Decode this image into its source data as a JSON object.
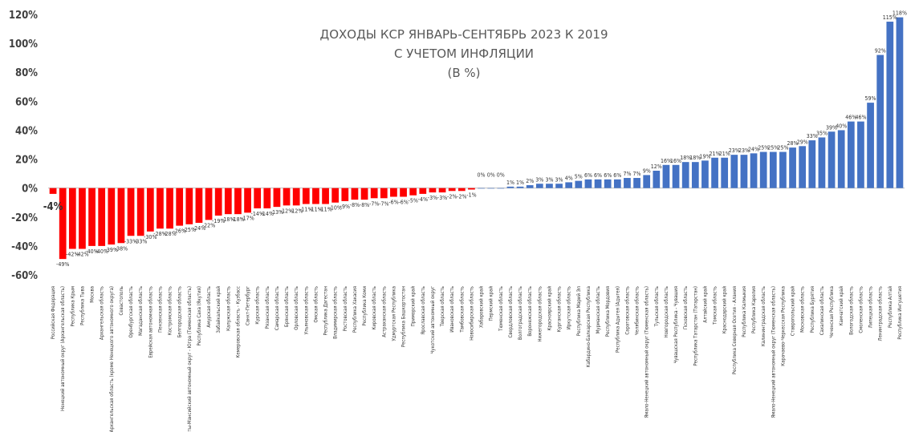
{
  "chart_data": {
    "type": "bar",
    "title": [
      "ДОХОДЫ КСР ЯНВАРЬ-СЕНТЯБРЬ 2023 К 2019",
      "С УЧЕТОМ ИНФЛЯЦИИ",
      "(В %)"
    ],
    "y_ticks": [
      "120%",
      "100%",
      "80%",
      "60%",
      "40%",
      "20%",
      "0%",
      "-20%",
      "-40%",
      "-60%"
    ],
    "ylim": [
      -60,
      120
    ],
    "grid": false,
    "negative_color": "#ff0000",
    "positive_color": "#4472c4",
    "categories": [
      "Российская Федерация",
      "Ненецкий автономный округ (Архангельская область)",
      "Республика Крым",
      "Республика Тыва",
      "Москва",
      "Архангельская область",
      "Архангельская область (кроме Ненецкого автономного округа)",
      "Севастополь",
      "Оренбургская область",
      "Магаданская область",
      "Еврейская автономная область",
      "Пензенская область",
      "Костромская область",
      "Белгородская область",
      "Ханты-Мансийский автономный округ - Югра (Тюменская область)",
      "Республика Саха (Якутия)",
      "Амурская область",
      "Забайкальский край",
      "Калужская область",
      "Кемеровская область - Кузбасс",
      "Санкт-Петербург",
      "Курская область",
      "Рязанская область",
      "Самарская область",
      "Брянская область",
      "Орловская область",
      "Ульяновская область",
      "Омская область",
      "Республика Дагестан",
      "Владимирская область",
      "Ростовская область",
      "Республика Хакасия",
      "Республика Коми",
      "Кировская область",
      "Астраханская область",
      "Удмуртская Республика",
      "Республика Башкортостан",
      "Приморский край",
      "Ярославская область",
      "Чукотский автономный округ",
      "Тверская область",
      "Ивановская область",
      "Тамбовская область",
      "Новосибирская область",
      "Хабаровский край",
      "Пермский край",
      "Тюменская область",
      "Свердловская область",
      "Волгоградская область",
      "Воронежская область",
      "Нижегородская область",
      "Красноярский край",
      "Курганская область",
      "Иркутская область",
      "Республика Марий Эл",
      "Кабардино-Балкарская Республика",
      "Мурманская область",
      "Республика Мордовия",
      "Республика Адыгея (Адыгея)",
      "Саратовская область",
      "Челябинская область",
      "Ямало-Ненецкий автономный округ (Тюменская область)",
      "Тульская область",
      "Новгородская область",
      "Чувашская Республика - Чувашия",
      "Псковская область",
      "Республика Татарстан (Татарстан)",
      "Алтайский край",
      "Томская область",
      "Краснодарский край",
      "Республика Северная Осетия - Алания",
      "Республика Калмыкия",
      "Республика Карелия",
      "Калининградская область",
      "Ямало-Ненецкий автономный округ (Тюменская область)",
      "Карачаево-Черкесская Республика",
      "Ставропольский край",
      "Московская область",
      "Республика Бурятия",
      "Сахалинская область",
      "Чеченская Республика",
      "Камчатский край",
      "Вологодская область",
      "Смоленская область",
      "Липецкая область",
      "Ленинградская область",
      "Республика Алтай",
      "Республика Ингушетия"
    ],
    "values": [
      -4,
      -49,
      -42,
      -42,
      -40,
      -40,
      -39,
      -38,
      -33,
      -33,
      -30,
      -28,
      -28,
      -26,
      -25,
      -24,
      -22,
      -19,
      -18,
      -18,
      -17,
      -14,
      -14,
      -13,
      -12,
      -12,
      -11,
      -11,
      -11,
      -10,
      -9,
      -8,
      -8,
      -7,
      -7,
      -6,
      -6,
      -5,
      -4,
      -3,
      -3,
      -2,
      -2,
      -1,
      0,
      0,
      0,
      1,
      1,
      2,
      3,
      3,
      3,
      4,
      5,
      6,
      6,
      6,
      6,
      7,
      7,
      9,
      12,
      16,
      16,
      18,
      18,
      19,
      21,
      21,
      23,
      23,
      24,
      25,
      25,
      25,
      28,
      29,
      33,
      35,
      39,
      40,
      46,
      46,
      59,
      92,
      115,
      118
    ],
    "value_labels": [
      "-4%",
      "-49%",
      "-42%",
      "-42%",
      "-40%",
      "-40%",
      "-39%",
      "-38%",
      "-33%",
      "-33%",
      "-30%",
      "-28%",
      "-28%",
      "-26%",
      "-25%",
      "-24%",
      "-22%",
      "-19%",
      "-18%",
      "-18%",
      "-17%",
      "-14%",
      "-14%",
      "-13%",
      "-12%",
      "-12%",
      "-11%",
      "-11%",
      "-11%",
      "-10%",
      "-9%",
      "-8%",
      "-8%",
      "-7%",
      "-7%",
      "-6%",
      "-6%",
      "-5%",
      "-4%",
      "-3%",
      "-3%",
      "-2%",
      "-2%",
      "-1%",
      "0%",
      "0%",
      "0%",
      "1%",
      "1%",
      "2%",
      "3%",
      "3%",
      "3%",
      "4%",
      "5%",
      "6%",
      "6%",
      "6%",
      "6%",
      "7%",
      "7%",
      "9%",
      "12%",
      "16%",
      "16%",
      "18%",
      "18%",
      "19%",
      "21%",
      "21%",
      "23%",
      "23%",
      "24%",
      "25%",
      "25%",
      "25%",
      "28%",
      "29%",
      "33%",
      "35%",
      "39%",
      "40%",
      "46%",
      "46%",
      "59%",
      "92%",
      "115%",
      "118%"
    ]
  }
}
